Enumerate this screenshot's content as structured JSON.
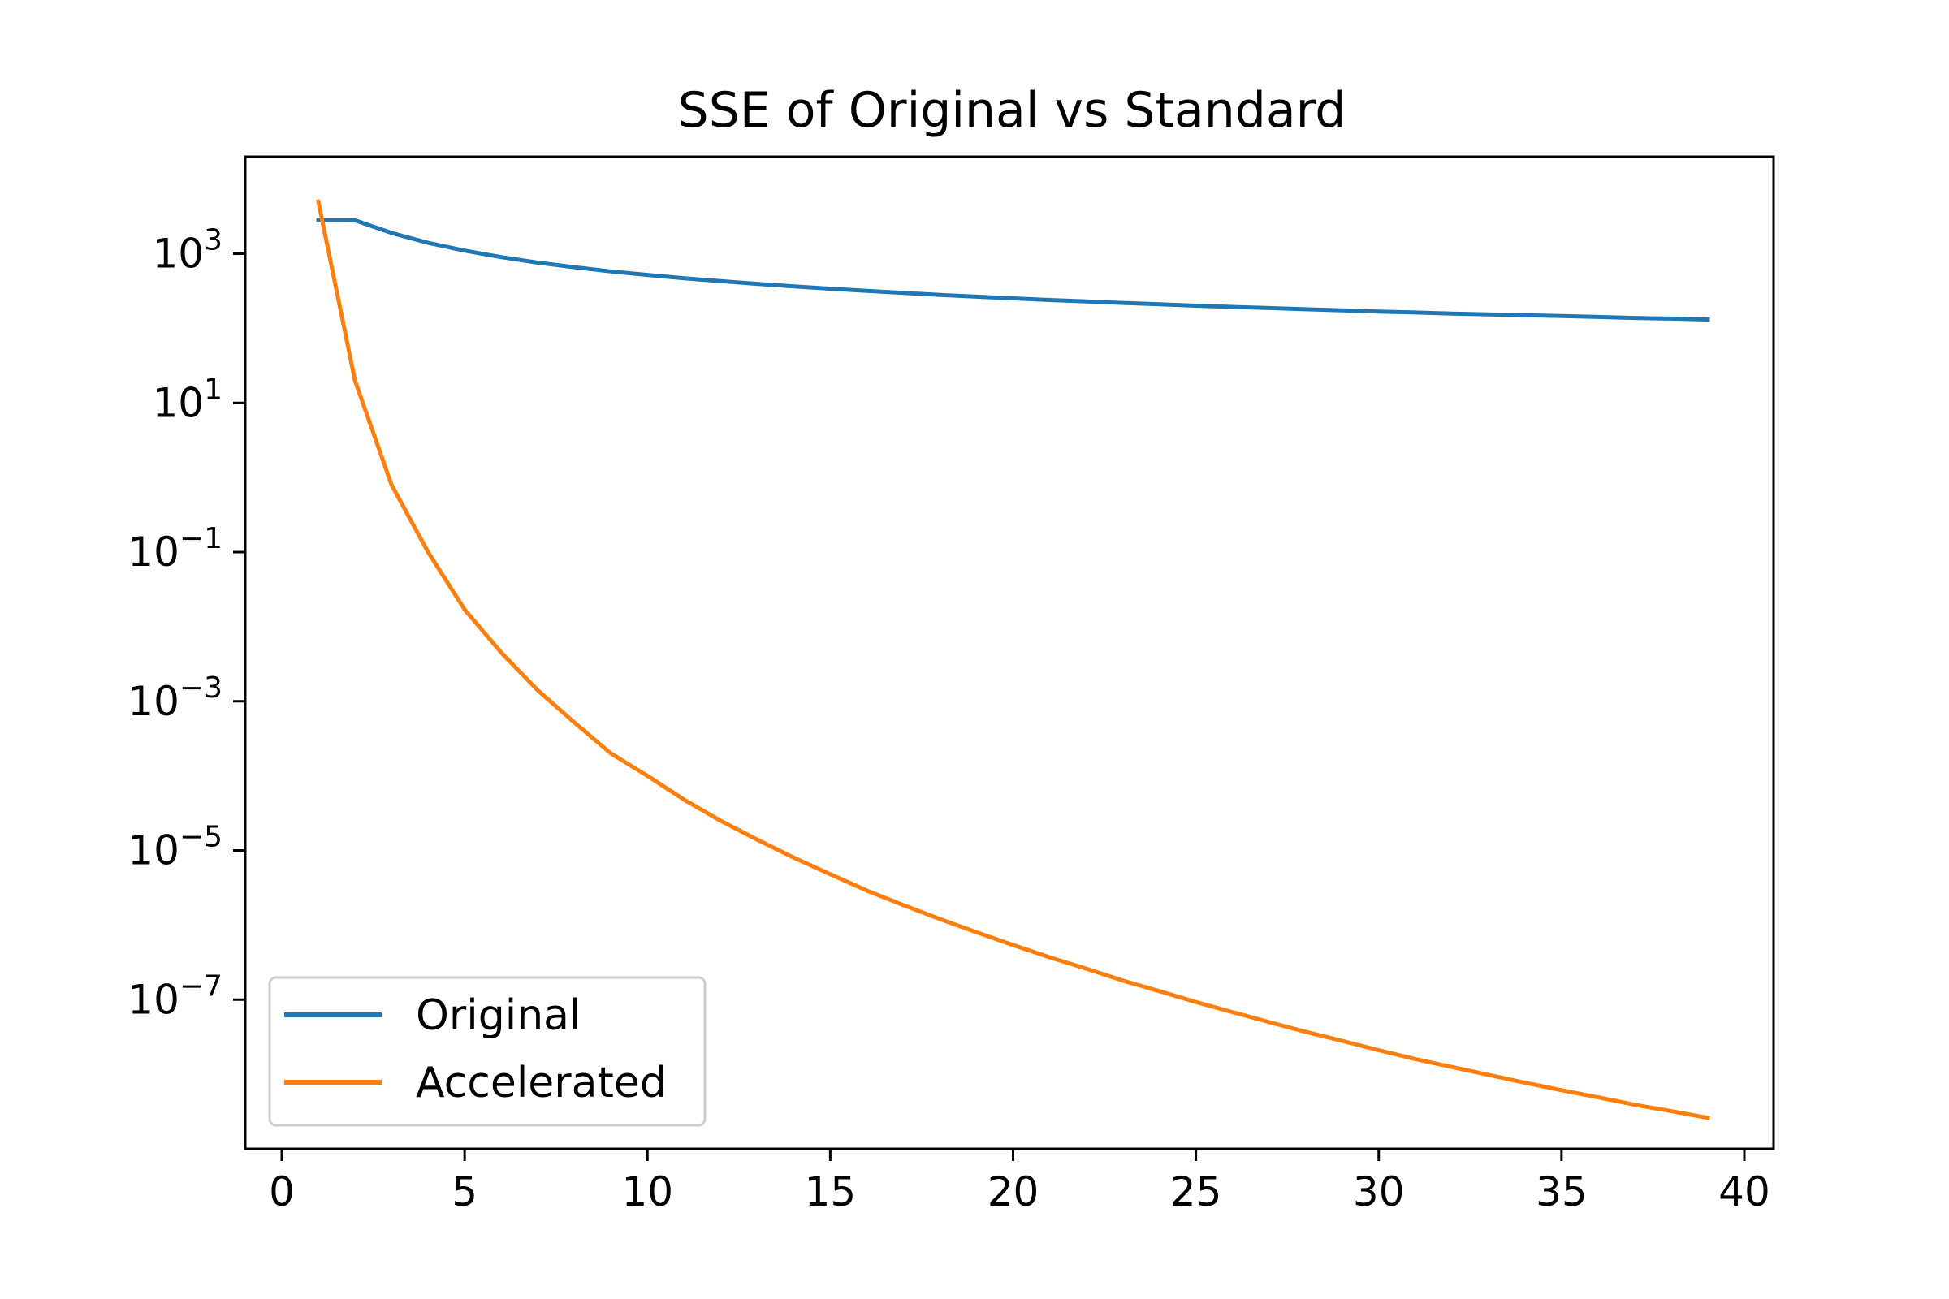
{
  "chart_data": {
    "type": "line",
    "title": "SSE of Original vs Standard",
    "xlabel": "",
    "ylabel": "",
    "xlim": [
      -1,
      40.8
    ],
    "ylim": [
      1e-09,
      20000.0
    ],
    "yscale": "log",
    "x_ticks": [
      0,
      5,
      10,
      15,
      20,
      25,
      30,
      35,
      40
    ],
    "y_ticks": [
      {
        "value": 1000.0,
        "base": "10",
        "exp": "3"
      },
      {
        "value": 10.0,
        "base": "10",
        "exp": "1"
      },
      {
        "value": 0.1,
        "base": "10",
        "exp": "−1"
      },
      {
        "value": 0.001,
        "base": "10",
        "exp": "−3"
      },
      {
        "value": 1e-05,
        "base": "10",
        "exp": "−5"
      },
      {
        "value": 1e-07,
        "base": "10",
        "exp": "−7"
      }
    ],
    "grid": false,
    "legend": {
      "position": "lower-left"
    },
    "series": [
      {
        "name": "Original",
        "color": "#1f77b4",
        "x": [
          1,
          2,
          3,
          4,
          5,
          6,
          7,
          8,
          9,
          10,
          11,
          12,
          13,
          14,
          15,
          16,
          17,
          18,
          19,
          20,
          21,
          22,
          23,
          24,
          25,
          26,
          27,
          28,
          29,
          30,
          31,
          32,
          33,
          34,
          35,
          36,
          37,
          38,
          39
        ],
        "y": [
          2800,
          2800,
          1900,
          1400,
          1100,
          900,
          760,
          660,
          580,
          520,
          470,
          430,
          395,
          365,
          340,
          318,
          298,
          281,
          266,
          252,
          240,
          229,
          219,
          210,
          201,
          194,
          187,
          180,
          174,
          168,
          163,
          158,
          154,
          150,
          146,
          142,
          138,
          135,
          131
        ]
      },
      {
        "name": "Accelerated",
        "color": "#ff7f0e",
        "x": [
          1,
          2,
          3,
          4,
          5,
          6,
          7,
          8,
          9,
          10,
          11,
          12,
          13,
          14,
          15,
          16,
          17,
          18,
          19,
          20,
          21,
          22,
          23,
          24,
          25,
          26,
          27,
          28,
          29,
          30,
          31,
          32,
          33,
          34,
          35,
          36,
          37,
          38,
          39
        ],
        "y": [
          5000,
          20,
          0.8,
          0.1,
          0.017,
          0.0045,
          0.0014,
          0.00052,
          0.0002,
          0.0001,
          4.8e-05,
          2.5e-05,
          1.4e-05,
          8e-06,
          4.8e-06,
          2.9e-06,
          1.85e-06,
          1.2e-06,
          8e-07,
          5.4e-07,
          3.7e-07,
          2.6e-07,
          1.8e-07,
          1.3e-07,
          9.3e-08,
          6.8e-08,
          5e-08,
          3.7e-08,
          2.8e-08,
          2.1e-08,
          1.6e-08,
          1.25e-08,
          9.8e-09,
          7.7e-09,
          6.1e-09,
          4.9e-09,
          3.9e-09,
          3.2e-09,
          2.6e-09
        ]
      }
    ]
  }
}
